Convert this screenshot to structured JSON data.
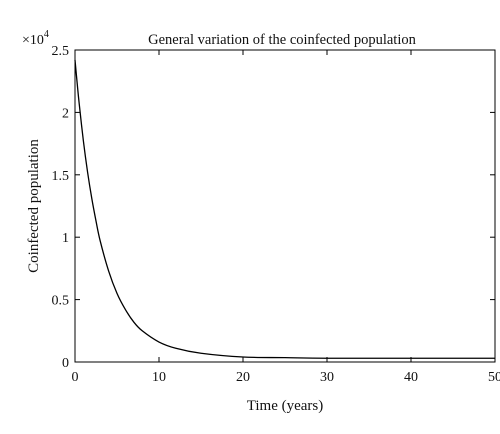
{
  "chart_data": {
    "type": "line",
    "title": "General variation of the coinfected population",
    "xlabel": "Time (years)",
    "ylabel": "Coinfected population",
    "y_multiplier_label": "×10",
    "y_multiplier_exponent": "4",
    "xlim": [
      0,
      50
    ],
    "ylim": [
      0,
      2.5
    ],
    "x_ticks": [
      "0",
      "10",
      "20",
      "30",
      "40",
      "50"
    ],
    "y_ticks": [
      "0",
      "0.5",
      "1",
      "1.5",
      "2",
      "2.5"
    ],
    "grid": false,
    "series": [
      {
        "color": "#000000",
        "x": [
          0,
          0.25,
          0.5,
          1,
          1.5,
          2,
          2.5,
          3,
          4,
          5,
          6,
          7,
          8,
          10,
          12,
          15,
          20,
          25,
          30,
          40,
          50
        ],
        "y": [
          2.42,
          2.24,
          2.07,
          1.77,
          1.52,
          1.31,
          1.13,
          0.97,
          0.73,
          0.55,
          0.42,
          0.32,
          0.25,
          0.16,
          0.11,
          0.07,
          0.04,
          0.035,
          0.03,
          0.03,
          0.03
        ]
      }
    ]
  }
}
